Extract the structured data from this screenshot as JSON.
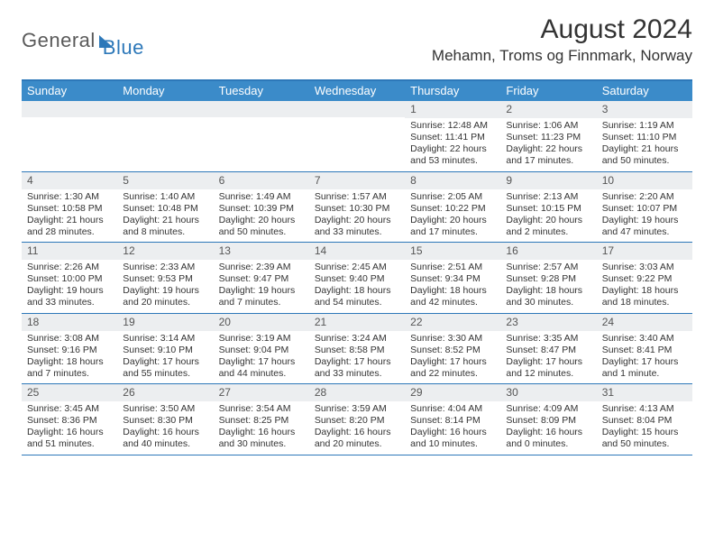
{
  "brand": {
    "part1": "General",
    "part2": "Blue"
  },
  "header": {
    "month_title": "August 2024",
    "location": "Mehamn, Troms og Finnmark, Norway"
  },
  "colors": {
    "accent": "#3b8bc9",
    "border": "#2d78b9",
    "grey_band": "#eceef0",
    "text": "#333333"
  },
  "days_of_week": [
    "Sunday",
    "Monday",
    "Tuesday",
    "Wednesday",
    "Thursday",
    "Friday",
    "Saturday"
  ],
  "weeks": [
    [
      {
        "day": "",
        "sunrise": "",
        "sunset": "",
        "daylight1": "",
        "daylight2": ""
      },
      {
        "day": "",
        "sunrise": "",
        "sunset": "",
        "daylight1": "",
        "daylight2": ""
      },
      {
        "day": "",
        "sunrise": "",
        "sunset": "",
        "daylight1": "",
        "daylight2": ""
      },
      {
        "day": "",
        "sunrise": "",
        "sunset": "",
        "daylight1": "",
        "daylight2": ""
      },
      {
        "day": "1",
        "sunrise": "Sunrise: 12:48 AM",
        "sunset": "Sunset: 11:41 PM",
        "daylight1": "Daylight: 22 hours",
        "daylight2": "and 53 minutes."
      },
      {
        "day": "2",
        "sunrise": "Sunrise: 1:06 AM",
        "sunset": "Sunset: 11:23 PM",
        "daylight1": "Daylight: 22 hours",
        "daylight2": "and 17 minutes."
      },
      {
        "day": "3",
        "sunrise": "Sunrise: 1:19 AM",
        "sunset": "Sunset: 11:10 PM",
        "daylight1": "Daylight: 21 hours",
        "daylight2": "and 50 minutes."
      }
    ],
    [
      {
        "day": "4",
        "sunrise": "Sunrise: 1:30 AM",
        "sunset": "Sunset: 10:58 PM",
        "daylight1": "Daylight: 21 hours",
        "daylight2": "and 28 minutes."
      },
      {
        "day": "5",
        "sunrise": "Sunrise: 1:40 AM",
        "sunset": "Sunset: 10:48 PM",
        "daylight1": "Daylight: 21 hours",
        "daylight2": "and 8 minutes."
      },
      {
        "day": "6",
        "sunrise": "Sunrise: 1:49 AM",
        "sunset": "Sunset: 10:39 PM",
        "daylight1": "Daylight: 20 hours",
        "daylight2": "and 50 minutes."
      },
      {
        "day": "7",
        "sunrise": "Sunrise: 1:57 AM",
        "sunset": "Sunset: 10:30 PM",
        "daylight1": "Daylight: 20 hours",
        "daylight2": "and 33 minutes."
      },
      {
        "day": "8",
        "sunrise": "Sunrise: 2:05 AM",
        "sunset": "Sunset: 10:22 PM",
        "daylight1": "Daylight: 20 hours",
        "daylight2": "and 17 minutes."
      },
      {
        "day": "9",
        "sunrise": "Sunrise: 2:13 AM",
        "sunset": "Sunset: 10:15 PM",
        "daylight1": "Daylight: 20 hours",
        "daylight2": "and 2 minutes."
      },
      {
        "day": "10",
        "sunrise": "Sunrise: 2:20 AM",
        "sunset": "Sunset: 10:07 PM",
        "daylight1": "Daylight: 19 hours",
        "daylight2": "and 47 minutes."
      }
    ],
    [
      {
        "day": "11",
        "sunrise": "Sunrise: 2:26 AM",
        "sunset": "Sunset: 10:00 PM",
        "daylight1": "Daylight: 19 hours",
        "daylight2": "and 33 minutes."
      },
      {
        "day": "12",
        "sunrise": "Sunrise: 2:33 AM",
        "sunset": "Sunset: 9:53 PM",
        "daylight1": "Daylight: 19 hours",
        "daylight2": "and 20 minutes."
      },
      {
        "day": "13",
        "sunrise": "Sunrise: 2:39 AM",
        "sunset": "Sunset: 9:47 PM",
        "daylight1": "Daylight: 19 hours",
        "daylight2": "and 7 minutes."
      },
      {
        "day": "14",
        "sunrise": "Sunrise: 2:45 AM",
        "sunset": "Sunset: 9:40 PM",
        "daylight1": "Daylight: 18 hours",
        "daylight2": "and 54 minutes."
      },
      {
        "day": "15",
        "sunrise": "Sunrise: 2:51 AM",
        "sunset": "Sunset: 9:34 PM",
        "daylight1": "Daylight: 18 hours",
        "daylight2": "and 42 minutes."
      },
      {
        "day": "16",
        "sunrise": "Sunrise: 2:57 AM",
        "sunset": "Sunset: 9:28 PM",
        "daylight1": "Daylight: 18 hours",
        "daylight2": "and 30 minutes."
      },
      {
        "day": "17",
        "sunrise": "Sunrise: 3:03 AM",
        "sunset": "Sunset: 9:22 PM",
        "daylight1": "Daylight: 18 hours",
        "daylight2": "and 18 minutes."
      }
    ],
    [
      {
        "day": "18",
        "sunrise": "Sunrise: 3:08 AM",
        "sunset": "Sunset: 9:16 PM",
        "daylight1": "Daylight: 18 hours",
        "daylight2": "and 7 minutes."
      },
      {
        "day": "19",
        "sunrise": "Sunrise: 3:14 AM",
        "sunset": "Sunset: 9:10 PM",
        "daylight1": "Daylight: 17 hours",
        "daylight2": "and 55 minutes."
      },
      {
        "day": "20",
        "sunrise": "Sunrise: 3:19 AM",
        "sunset": "Sunset: 9:04 PM",
        "daylight1": "Daylight: 17 hours",
        "daylight2": "and 44 minutes."
      },
      {
        "day": "21",
        "sunrise": "Sunrise: 3:24 AM",
        "sunset": "Sunset: 8:58 PM",
        "daylight1": "Daylight: 17 hours",
        "daylight2": "and 33 minutes."
      },
      {
        "day": "22",
        "sunrise": "Sunrise: 3:30 AM",
        "sunset": "Sunset: 8:52 PM",
        "daylight1": "Daylight: 17 hours",
        "daylight2": "and 22 minutes."
      },
      {
        "day": "23",
        "sunrise": "Sunrise: 3:35 AM",
        "sunset": "Sunset: 8:47 PM",
        "daylight1": "Daylight: 17 hours",
        "daylight2": "and 12 minutes."
      },
      {
        "day": "24",
        "sunrise": "Sunrise: 3:40 AM",
        "sunset": "Sunset: 8:41 PM",
        "daylight1": "Daylight: 17 hours",
        "daylight2": "and 1 minute."
      }
    ],
    [
      {
        "day": "25",
        "sunrise": "Sunrise: 3:45 AM",
        "sunset": "Sunset: 8:36 PM",
        "daylight1": "Daylight: 16 hours",
        "daylight2": "and 51 minutes."
      },
      {
        "day": "26",
        "sunrise": "Sunrise: 3:50 AM",
        "sunset": "Sunset: 8:30 PM",
        "daylight1": "Daylight: 16 hours",
        "daylight2": "and 40 minutes."
      },
      {
        "day": "27",
        "sunrise": "Sunrise: 3:54 AM",
        "sunset": "Sunset: 8:25 PM",
        "daylight1": "Daylight: 16 hours",
        "daylight2": "and 30 minutes."
      },
      {
        "day": "28",
        "sunrise": "Sunrise: 3:59 AM",
        "sunset": "Sunset: 8:20 PM",
        "daylight1": "Daylight: 16 hours",
        "daylight2": "and 20 minutes."
      },
      {
        "day": "29",
        "sunrise": "Sunrise: 4:04 AM",
        "sunset": "Sunset: 8:14 PM",
        "daylight1": "Daylight: 16 hours",
        "daylight2": "and 10 minutes."
      },
      {
        "day": "30",
        "sunrise": "Sunrise: 4:09 AM",
        "sunset": "Sunset: 8:09 PM",
        "daylight1": "Daylight: 16 hours",
        "daylight2": "and 0 minutes."
      },
      {
        "day": "31",
        "sunrise": "Sunrise: 4:13 AM",
        "sunset": "Sunset: 8:04 PM",
        "daylight1": "Daylight: 15 hours",
        "daylight2": "and 50 minutes."
      }
    ]
  ]
}
